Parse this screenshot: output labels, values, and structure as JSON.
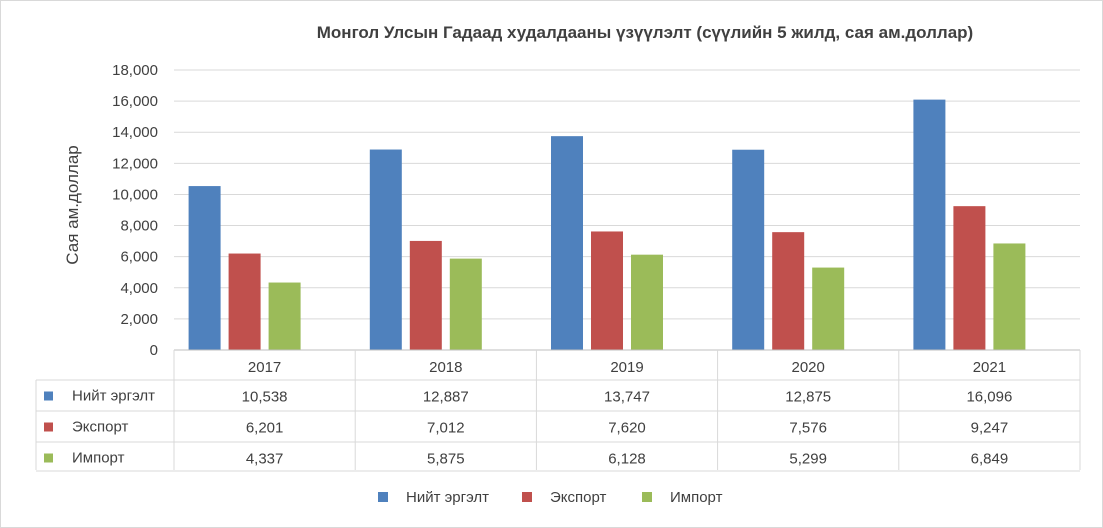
{
  "chart_data": {
    "type": "bar",
    "title": "Монгол Улсын Гадаад худалдааны үзүүлэлт (сүүлийн 5 жилд, сая ам.доллар)",
    "ylabel": "Сая ам.доллар",
    "xlabel": "",
    "categories": [
      "2017",
      "2018",
      "2019",
      "2020",
      "2021"
    ],
    "ylim": [
      0,
      18000
    ],
    "yticks": [
      "0",
      "2,000",
      "4,000",
      "6,000",
      "8,000",
      "10,000",
      "12,000",
      "14,000",
      "16,000",
      "18,000"
    ],
    "grid": true,
    "legend_position": "bottom",
    "series": [
      {
        "name": "Нийт эргэлт",
        "color": "#4F81BD",
        "values": [
          10538,
          12887,
          13747,
          12875,
          16096
        ],
        "labels": [
          "10,538",
          "12,887",
          "13,747",
          "12,875",
          "16,096"
        ]
      },
      {
        "name": "Экспорт",
        "color": "#C0504D",
        "values": [
          6201,
          7012,
          7620,
          7576,
          9247
        ],
        "labels": [
          "6,201",
          "7,012",
          "7,620",
          "7,576",
          "9,247"
        ]
      },
      {
        "name": "Импорт",
        "color": "#9BBB59",
        "values": [
          4337,
          5875,
          6128,
          5299,
          6849
        ],
        "labels": [
          "4,337",
          "5,875",
          "6,128",
          "5,299",
          "6,849"
        ]
      }
    ]
  }
}
